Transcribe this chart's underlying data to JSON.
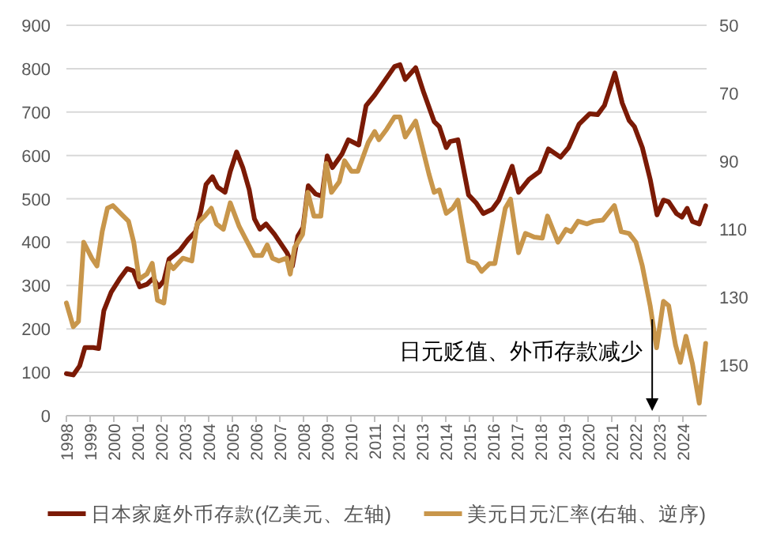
{
  "chart_data": {
    "type": "line",
    "annotations": [
      "日元贬值、外币存款减少"
    ],
    "xlim": [
      1998,
      2025
    ],
    "xticks": [
      1998,
      1999,
      2000,
      2001,
      2002,
      2003,
      2004,
      2005,
      2006,
      2007,
      2008,
      2009,
      2010,
      2011,
      2012,
      2013,
      2014,
      2015,
      2016,
      2017,
      2018,
      2019,
      2020,
      2021,
      2022,
      2023,
      2024
    ],
    "ylim": [
      0,
      900
    ],
    "yticks": [
      0,
      100,
      200,
      300,
      400,
      500,
      600,
      700,
      800,
      900
    ],
    "y2lim": [
      165,
      50
    ],
    "y2ticks": [
      50,
      70,
      90,
      110,
      130,
      150
    ],
    "grid": "y",
    "legend": "bottom",
    "line_style": "solid",
    "marker": "none",
    "series": [
      {
        "name": "日本家庭外币存款(亿美元、左轴)",
        "color": "#7b1a05",
        "x": [
          1998.0,
          1998.29,
          1998.56,
          1998.78,
          1999.13,
          1999.36,
          1999.58,
          1999.89,
          2000.24,
          2000.56,
          2000.82,
          2001.09,
          2001.4,
          2001.67,
          2001.89,
          2002.11,
          2002.33,
          2002.78,
          2003.13,
          2003.44,
          2003.67,
          2003.89,
          2004.16,
          2004.38,
          2004.69,
          2004.91,
          2005.18,
          2005.44,
          2005.71,
          2005.93,
          2006.16,
          2006.42,
          2006.78,
          2007.04,
          2007.31,
          2007.53,
          2007.76,
          2007.98,
          2008.2,
          2008.51,
          2008.78,
          2009.0,
          2009.22,
          2009.62,
          2009.89,
          2010.33,
          2010.64,
          2011.0,
          2011.84,
          2012.07,
          2012.29,
          2012.73,
          2013.07,
          2013.51,
          2013.73,
          2014.02,
          2014.18,
          2014.51,
          2014.96,
          2015.29,
          2015.58,
          2015.96,
          2016.24,
          2016.8,
          2017.07,
          2017.51,
          2017.96,
          2018.33,
          2018.84,
          2019.18,
          2019.62,
          2020.07,
          2020.4,
          2020.69,
          2021.13,
          2021.44,
          2021.73,
          2021.96,
          2022.29,
          2022.62,
          2022.91,
          2023.18,
          2023.4,
          2023.73,
          2023.96,
          2024.18,
          2024.4,
          2024.69,
          2024.96
        ],
        "values": [
          97,
          94,
          115,
          157,
          157,
          155,
          242,
          285,
          315,
          339,
          334,
          297,
          303,
          317,
          297,
          311,
          361,
          381,
          406,
          424,
          472,
          533,
          551,
          527,
          515,
          563,
          608,
          572,
          521,
          454,
          430,
          442,
          418,
          397,
          375,
          345,
          414,
          434,
          530,
          511,
          506,
          599,
          572,
          603,
          636,
          624,
          715,
          739,
          805,
          809,
          775,
          802,
          745,
          678,
          666,
          618,
          632,
          636,
          509,
          490,
          466,
          476,
          497,
          575,
          515,
          545,
          563,
          615,
          596,
          618,
          672,
          696,
          694,
          715,
          790,
          721,
          681,
          666,
          618,
          545,
          463,
          497,
          493,
          466,
          458,
          478,
          448,
          442,
          484
        ]
      },
      {
        "name": "美元日元汇率(右轴、逆序)",
        "color": "#c8964b",
        "axis": "y2",
        "x": [
          1998.0,
          1998.29,
          1998.51,
          1998.73,
          1999.07,
          1999.29,
          1999.51,
          1999.73,
          1999.96,
          2000.4,
          2000.62,
          2000.84,
          2001.07,
          2001.4,
          2001.62,
          2001.84,
          2002.11,
          2002.33,
          2002.51,
          2002.91,
          2003.29,
          2003.51,
          2003.84,
          2004.11,
          2004.33,
          2004.62,
          2004.91,
          2005.29,
          2005.58,
          2005.93,
          2006.24,
          2006.47,
          2006.69,
          2006.96,
          2007.29,
          2007.44,
          2007.62,
          2007.96,
          2008.18,
          2008.44,
          2008.73,
          2008.96,
          2009.18,
          2009.51,
          2009.73,
          2010.02,
          2010.29,
          2010.73,
          2011.0,
          2011.18,
          2011.51,
          2011.84,
          2012.07,
          2012.29,
          2012.73,
          2012.96,
          2013.29,
          2013.51,
          2013.73,
          2014.02,
          2014.29,
          2014.51,
          2014.96,
          2015.29,
          2015.51,
          2015.84,
          2016.07,
          2016.51,
          2016.73,
          2017.07,
          2017.36,
          2017.73,
          2018.07,
          2018.29,
          2018.73,
          2019.07,
          2019.29,
          2019.58,
          2019.96,
          2020.24,
          2020.62,
          2021.11,
          2021.4,
          2021.73,
          2022.02,
          2022.29,
          2022.62,
          2022.89,
          2023.18,
          2023.4,
          2023.69,
          2023.89,
          2024.13,
          2024.4,
          2024.69,
          2024.96
        ],
        "values": [
          131.8,
          138.8,
          137.2,
          113.9,
          118.6,
          120.9,
          110.8,
          103.9,
          103.1,
          106.2,
          107.7,
          113.9,
          124.8,
          123.2,
          120.1,
          131.0,
          131.8,
          120.1,
          121.7,
          118.6,
          119.4,
          108.5,
          106.2,
          103.9,
          108.5,
          110.1,
          102.3,
          109.3,
          113.2,
          117.8,
          117.8,
          114.7,
          118.6,
          119.4,
          118.6,
          123.3,
          115.5,
          111.6,
          99.2,
          106.2,
          106.2,
          90.7,
          99.2,
          96.1,
          89.9,
          93.0,
          93.0,
          84.5,
          81.3,
          83.7,
          80.6,
          77.0,
          77.0,
          82.9,
          78.2,
          84.5,
          93.8,
          99.2,
          98.5,
          105.4,
          103.9,
          101.5,
          119.4,
          120.2,
          122.5,
          120.2,
          120.2,
          103.9,
          101.2,
          117.0,
          111.3,
          112.4,
          112.7,
          106.2,
          113.9,
          110.1,
          110.8,
          107.7,
          108.5,
          107.7,
          107.4,
          103.1,
          110.8,
          111.3,
          113.9,
          120.9,
          132.6,
          145.0,
          131.3,
          132.6,
          144.2,
          149.3,
          141.6,
          149.6,
          161.3,
          143.7
        ]
      }
    ]
  }
}
